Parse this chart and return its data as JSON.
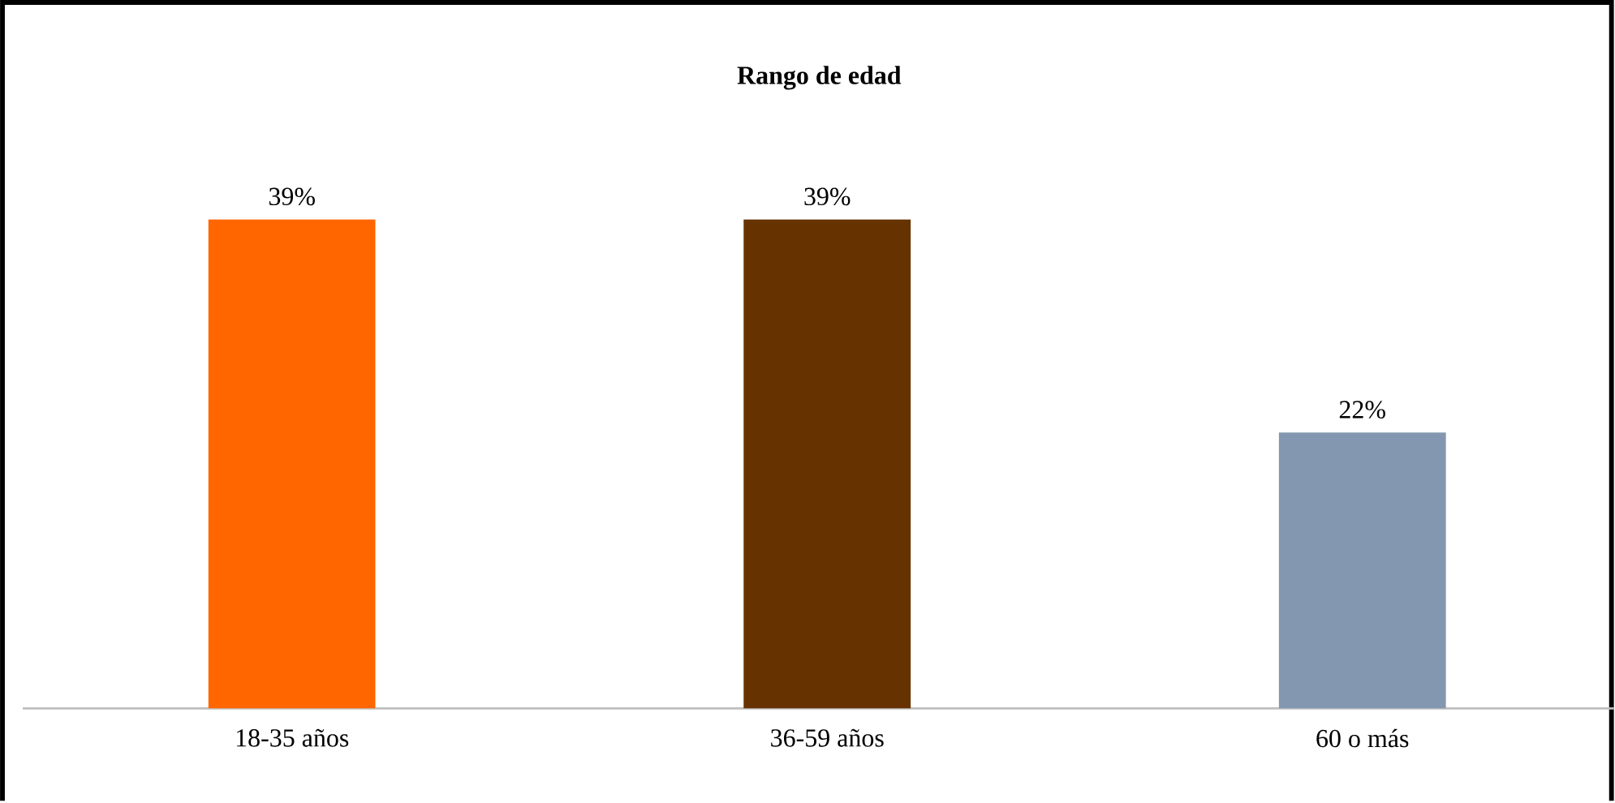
{
  "chart_data": {
    "type": "bar",
    "title": "Rango de edad",
    "categories": [
      "18-35 años",
      "36-59 años",
      "60 o más"
    ],
    "values": [
      39,
      39,
      22
    ],
    "value_labels": [
      "39%",
      "39%",
      "22%"
    ],
    "colors": [
      "#ff6600",
      "#663300",
      "#8497b0"
    ]
  }
}
